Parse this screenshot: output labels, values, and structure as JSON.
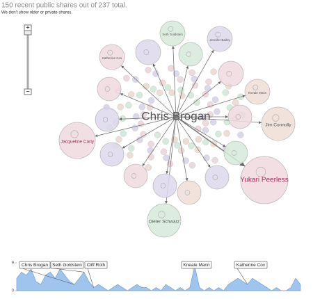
{
  "header": {
    "title": "150 recent public shares out of 237 total.",
    "subtitle": "We don't show older or private shares."
  },
  "zoom": {
    "in": "+",
    "out": "−"
  },
  "graph": {
    "center": "Chris Brogan",
    "nodes": [
      {
        "label": "Seth Goldstein"
      },
      {
        "label": "Jennifer Bailey"
      },
      {
        "label": "Katherine Cox"
      },
      {
        "label": "Kneale Mann"
      },
      {
        "label": "Jim Connolly"
      },
      {
        "label": "Jacqueline Carly"
      },
      {
        "label": "Yukari Peerless"
      },
      {
        "label": "Dieter Schwarz"
      }
    ]
  },
  "timeline": {
    "ylim": [
      0,
      9
    ],
    "yticks": [
      0,
      9
    ],
    "values": [
      4,
      6,
      5,
      7,
      3,
      2,
      5,
      6,
      4,
      7,
      5,
      3,
      2,
      4,
      6,
      3,
      1,
      2,
      1,
      0,
      1,
      2,
      1,
      0,
      1,
      2,
      1,
      1,
      0,
      1,
      0,
      2,
      1,
      0,
      1,
      0,
      1,
      8,
      1,
      0,
      1,
      0,
      1,
      0,
      2,
      3,
      4,
      3,
      2,
      4,
      3,
      2,
      1,
      0,
      1,
      0,
      0,
      1,
      4,
      2
    ],
    "annotations": [
      "Chris Brogan",
      "Seth Goldstein",
      "Cliff Roth",
      "Kneale Mann",
      "Katherine Cox"
    ]
  }
}
